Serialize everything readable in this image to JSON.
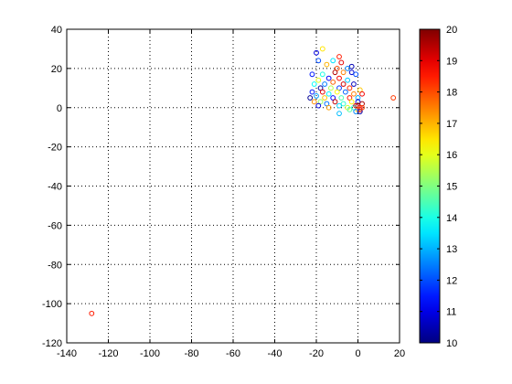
{
  "chart_data": {
    "type": "scatter",
    "title": "",
    "xlabel": "",
    "ylabel": "",
    "xlim": [
      -140,
      20
    ],
    "ylim": [
      -120,
      40
    ],
    "x_ticks": [
      -140,
      -120,
      -100,
      -80,
      -60,
      -40,
      -20,
      0,
      20
    ],
    "y_ticks": [
      -120,
      -100,
      -80,
      -60,
      -40,
      -20,
      0,
      20,
      40
    ],
    "grid": "dotted",
    "marker": "open-circle",
    "colorbar": {
      "colormap": "jet",
      "min": 10,
      "max": 20,
      "ticks": [
        10,
        11,
        12,
        13,
        14,
        15,
        16,
        17,
        18,
        19,
        20
      ]
    },
    "points": [
      {
        "x": -128,
        "y": -105,
        "c": 18.5
      },
      {
        "x": 17,
        "y": 5,
        "c": 18.2
      },
      {
        "x": -17,
        "y": 30,
        "c": 16.5
      },
      {
        "x": -20,
        "y": 28,
        "c": 11.0
      },
      {
        "x": -9,
        "y": 26,
        "c": 18.5
      },
      {
        "x": -19,
        "y": 24,
        "c": 12.0
      },
      {
        "x": -12,
        "y": 24,
        "c": 13.5
      },
      {
        "x": -8,
        "y": 23,
        "c": 19.0
      },
      {
        "x": -15,
        "y": 22,
        "c": 17.0
      },
      {
        "x": -3,
        "y": 21,
        "c": 10.5
      },
      {
        "x": -10,
        "y": 20,
        "c": 18.0
      },
      {
        "x": -5,
        "y": 20,
        "c": 12.5
      },
      {
        "x": -22,
        "y": 17,
        "c": 11.5
      },
      {
        "x": -17,
        "y": 17,
        "c": 14.0
      },
      {
        "x": -11,
        "y": 18,
        "c": 19.5
      },
      {
        "x": -7,
        "y": 18,
        "c": 17.5
      },
      {
        "x": -3,
        "y": 18,
        "c": 10.8
      },
      {
        "x": -1,
        "y": 17,
        "c": 12.0
      },
      {
        "x": -19,
        "y": 14,
        "c": 16.0
      },
      {
        "x": -14,
        "y": 15,
        "c": 11.2
      },
      {
        "x": -9,
        "y": 15,
        "c": 18.8
      },
      {
        "x": -5,
        "y": 14,
        "c": 13.2
      },
      {
        "x": -21,
        "y": 12,
        "c": 13.8
      },
      {
        "x": -16,
        "y": 12,
        "c": 12.5
      },
      {
        "x": -12,
        "y": 13,
        "c": 17.8
      },
      {
        "x": -7,
        "y": 12,
        "c": 19.2
      },
      {
        "x": -2,
        "y": 12,
        "c": 10.6
      },
      {
        "x": -18,
        "y": 10,
        "c": 10.3
      },
      {
        "x": -13,
        "y": 10,
        "c": 15.5
      },
      {
        "x": -9,
        "y": 10,
        "c": 11.8
      },
      {
        "x": -4,
        "y": 10,
        "c": 18.3
      },
      {
        "x": 1,
        "y": 9,
        "c": 16.8
      },
      {
        "x": -22,
        "y": 8,
        "c": 11.5
      },
      {
        "x": -17,
        "y": 8,
        "c": 19.0
      },
      {
        "x": -14,
        "y": 7,
        "c": 13.6
      },
      {
        "x": -10,
        "y": 8,
        "c": 16.2
      },
      {
        "x": -6,
        "y": 8,
        "c": 12.2
      },
      {
        "x": -2,
        "y": 7,
        "c": 17.5
      },
      {
        "x": 2,
        "y": 7,
        "c": 18.9
      },
      {
        "x": -23,
        "y": 5,
        "c": 10.2
      },
      {
        "x": -20,
        "y": 6,
        "c": 12.8
      },
      {
        "x": -16,
        "y": 5,
        "c": 16.8
      },
      {
        "x": -12,
        "y": 5,
        "c": 11.4
      },
      {
        "x": -8,
        "y": 5,
        "c": 14.5
      },
      {
        "x": -4,
        "y": 5,
        "c": 18.6
      },
      {
        "x": 0,
        "y": 5,
        "c": 13.0
      },
      {
        "x": -21,
        "y": 3,
        "c": 17.4
      },
      {
        "x": -18,
        "y": 3,
        "c": 15.2
      },
      {
        "x": -15,
        "y": 2,
        "c": 12.4
      },
      {
        "x": -11,
        "y": 3,
        "c": 19.4
      },
      {
        "x": -7,
        "y": 2,
        "c": 14.2
      },
      {
        "x": -3,
        "y": 3,
        "c": 16.4
      },
      {
        "x": 0,
        "y": 3,
        "c": 11.0
      },
      {
        "x": 2,
        "y": 2,
        "c": 19.6
      },
      {
        "x": -19,
        "y": 1,
        "c": 10.9
      },
      {
        "x": -14,
        "y": 0,
        "c": 17.2
      },
      {
        "x": -9,
        "y": 1,
        "c": 13.4
      },
      {
        "x": -5,
        "y": 0,
        "c": 15.8
      },
      {
        "x": -2,
        "y": 0,
        "c": 14.0
      },
      {
        "x": 0,
        "y": 1,
        "c": 19.8
      },
      {
        "x": 1,
        "y": 0,
        "c": 18.7
      },
      {
        "x": 0,
        "y": -1,
        "c": 17.0
      },
      {
        "x": 1,
        "y": -1,
        "c": 19.0
      },
      {
        "x": -1,
        "y": -2,
        "c": 12.6
      },
      {
        "x": -4,
        "y": -1,
        "c": 14.6
      },
      {
        "x": -9,
        "y": -3,
        "c": 13.1
      },
      {
        "x": 1,
        "y": -2,
        "c": 10.4
      },
      {
        "x": 2,
        "y": 0,
        "c": 18.1
      },
      {
        "x": -1,
        "y": 1,
        "c": 19.3
      }
    ]
  }
}
